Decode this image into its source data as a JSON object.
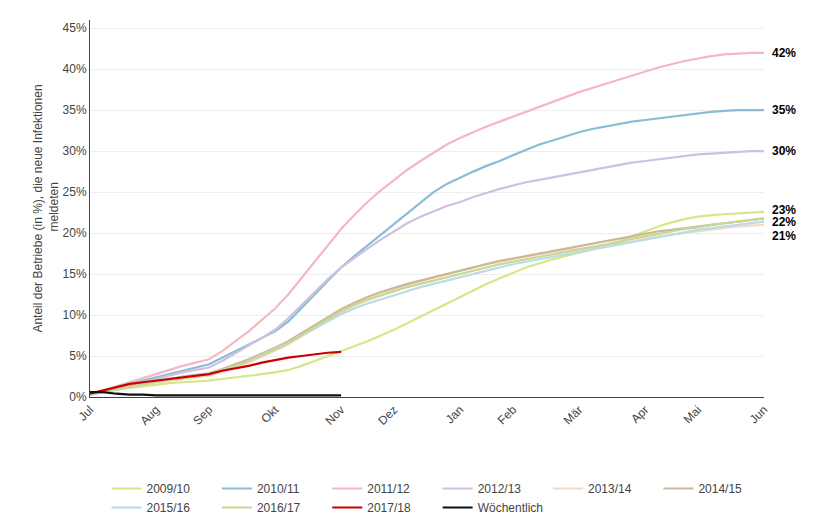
{
  "chart_data": {
    "type": "line",
    "ylabel": "Anteil der Betriebe (in %), die neue Infektionen\n meldeten",
    "categories": [
      "Jul",
      null,
      null,
      null,
      null,
      "Aug",
      null,
      null,
      null,
      "Sep",
      null,
      null,
      null,
      null,
      "Okt",
      null,
      null,
      null,
      null,
      "Nov",
      null,
      null,
      null,
      "Dez",
      null,
      null,
      null,
      null,
      "Jan",
      null,
      null,
      null,
      "Feb",
      null,
      null,
      null,
      null,
      "Mär",
      null,
      null,
      null,
      null,
      "Apr",
      null,
      null,
      null,
      "Mai",
      null,
      null,
      null,
      null,
      "Jun"
    ],
    "ylim": [
      0.0,
      0.46
    ],
    "yticks": [
      {
        "value": 0.0,
        "label": "0%"
      },
      {
        "value": 0.05,
        "label": "5%"
      },
      {
        "value": 0.1,
        "label": "10%"
      },
      {
        "value": 0.15,
        "label": "15%"
      },
      {
        "value": 0.2,
        "label": "20%"
      },
      {
        "value": 0.25,
        "label": "25%"
      },
      {
        "value": 0.3,
        "label": "30%"
      },
      {
        "value": 0.35,
        "label": "35%"
      },
      {
        "value": 0.4,
        "label": "40%"
      },
      {
        "value": 0.45,
        "label": "45%"
      }
    ],
    "grid": true,
    "legend": "bottom",
    "annotations": [
      {
        "text": "42%",
        "y": 0.42
      },
      {
        "text": "35%",
        "y": 0.35
      },
      {
        "text": "30%",
        "y": 0.3
      },
      {
        "text": "23%",
        "y": 0.228
      },
      {
        "text": "22%",
        "y": 0.213
      },
      {
        "text": "21%",
        "y": 0.196
      }
    ],
    "series": [
      {
        "name": "2009/10",
        "color": "#d4e88a",
        "values": [
          0.003,
          0.006,
          0.009,
          0.011,
          0.013,
          0.015,
          0.017,
          0.018,
          0.019,
          0.02,
          0.022,
          0.024,
          0.026,
          0.028,
          0.03,
          0.033,
          0.038,
          0.044,
          0.05,
          0.056,
          0.062,
          0.068,
          0.075,
          0.082,
          0.09,
          0.098,
          0.106,
          0.114,
          0.122,
          0.13,
          0.138,
          0.145,
          0.152,
          0.158,
          0.163,
          0.168,
          0.172,
          0.176,
          0.18,
          0.185,
          0.19,
          0.196,
          0.202,
          0.208,
          0.213,
          0.217,
          0.22,
          0.222,
          0.223,
          0.224,
          0.225,
          0.226
        ]
      },
      {
        "name": "2010/11",
        "color": "#8bbcd6",
        "values": [
          0.004,
          0.008,
          0.012,
          0.016,
          0.02,
          0.024,
          0.028,
          0.032,
          0.036,
          0.04,
          0.048,
          0.056,
          0.064,
          0.072,
          0.08,
          0.092,
          0.108,
          0.125,
          0.142,
          0.158,
          0.172,
          0.185,
          0.198,
          0.212,
          0.225,
          0.238,
          0.25,
          0.26,
          0.268,
          0.275,
          0.282,
          0.288,
          0.295,
          0.302,
          0.308,
          0.313,
          0.318,
          0.323,
          0.327,
          0.33,
          0.333,
          0.336,
          0.338,
          0.34,
          0.342,
          0.344,
          0.346,
          0.348,
          0.349,
          0.35,
          0.35,
          0.35
        ]
      },
      {
        "name": "2011/12",
        "color": "#f5b8c0",
        "values": [
          0.004,
          0.008,
          0.013,
          0.018,
          0.023,
          0.028,
          0.033,
          0.038,
          0.042,
          0.046,
          0.056,
          0.068,
          0.08,
          0.094,
          0.108,
          0.125,
          0.145,
          0.165,
          0.185,
          0.205,
          0.222,
          0.238,
          0.252,
          0.265,
          0.277,
          0.288,
          0.298,
          0.308,
          0.316,
          0.323,
          0.33,
          0.336,
          0.342,
          0.348,
          0.354,
          0.36,
          0.366,
          0.372,
          0.377,
          0.382,
          0.387,
          0.392,
          0.397,
          0.402,
          0.406,
          0.41,
          0.413,
          0.416,
          0.418,
          0.419,
          0.42,
          0.42
        ]
      },
      {
        "name": "2012/13",
        "color": "#cfc0e0",
        "values": [
          0.003,
          0.006,
          0.01,
          0.014,
          0.018,
          0.022,
          0.026,
          0.03,
          0.033,
          0.036,
          0.044,
          0.053,
          0.062,
          0.072,
          0.082,
          0.096,
          0.112,
          0.128,
          0.144,
          0.158,
          0.17,
          0.181,
          0.192,
          0.202,
          0.212,
          0.22,
          0.227,
          0.233,
          0.238,
          0.244,
          0.249,
          0.254,
          0.258,
          0.262,
          0.265,
          0.268,
          0.271,
          0.274,
          0.277,
          0.28,
          0.283,
          0.286,
          0.288,
          0.29,
          0.292,
          0.294,
          0.296,
          0.297,
          0.298,
          0.299,
          0.3,
          0.3
        ]
      },
      {
        "name": "2013/14",
        "color": "#f8d8c8",
        "values": [
          0.003,
          0.006,
          0.009,
          0.012,
          0.015,
          0.018,
          0.02,
          0.022,
          0.024,
          0.026,
          0.03,
          0.036,
          0.042,
          0.049,
          0.056,
          0.064,
          0.074,
          0.084,
          0.094,
          0.103,
          0.111,
          0.118,
          0.124,
          0.13,
          0.136,
          0.141,
          0.146,
          0.15,
          0.154,
          0.158,
          0.162,
          0.165,
          0.168,
          0.171,
          0.174,
          0.177,
          0.179,
          0.181,
          0.183,
          0.185,
          0.187,
          0.19,
          0.193,
          0.196,
          0.198,
          0.2,
          0.202,
          0.204,
          0.206,
          0.208,
          0.209,
          0.21
        ]
      },
      {
        "name": "2014/15",
        "color": "#cbb898",
        "values": [
          0.003,
          0.006,
          0.01,
          0.013,
          0.016,
          0.019,
          0.022,
          0.025,
          0.027,
          0.029,
          0.034,
          0.04,
          0.046,
          0.053,
          0.06,
          0.068,
          0.078,
          0.088,
          0.098,
          0.107,
          0.115,
          0.122,
          0.128,
          0.133,
          0.138,
          0.142,
          0.146,
          0.15,
          0.154,
          0.158,
          0.162,
          0.166,
          0.169,
          0.172,
          0.175,
          0.178,
          0.181,
          0.184,
          0.187,
          0.19,
          0.193,
          0.196,
          0.199,
          0.202,
          0.204,
          0.206,
          0.208,
          0.21,
          0.212,
          0.214,
          0.216,
          0.218
        ]
      },
      {
        "name": "2015/16",
        "color": "#b8dce8",
        "values": [
          0.003,
          0.006,
          0.009,
          0.012,
          0.015,
          0.018,
          0.021,
          0.024,
          0.026,
          0.028,
          0.033,
          0.038,
          0.044,
          0.051,
          0.058,
          0.066,
          0.075,
          0.084,
          0.093,
          0.101,
          0.108,
          0.114,
          0.119,
          0.124,
          0.129,
          0.134,
          0.138,
          0.142,
          0.146,
          0.15,
          0.154,
          0.158,
          0.162,
          0.165,
          0.168,
          0.171,
          0.174,
          0.177,
          0.18,
          0.183,
          0.186,
          0.189,
          0.192,
          0.195,
          0.198,
          0.201,
          0.204,
          0.206,
          0.208,
          0.21,
          0.212,
          0.214
        ]
      },
      {
        "name": "2016/17",
        "color": "#c8d890",
        "values": [
          0.003,
          0.006,
          0.009,
          0.012,
          0.015,
          0.018,
          0.021,
          0.023,
          0.025,
          0.027,
          0.032,
          0.038,
          0.044,
          0.051,
          0.058,
          0.066,
          0.076,
          0.086,
          0.096,
          0.105,
          0.113,
          0.119,
          0.124,
          0.129,
          0.134,
          0.138,
          0.142,
          0.146,
          0.15,
          0.154,
          0.158,
          0.162,
          0.165,
          0.168,
          0.171,
          0.174,
          0.177,
          0.18,
          0.183,
          0.186,
          0.189,
          0.193,
          0.196,
          0.199,
          0.202,
          0.205,
          0.207,
          0.21,
          0.212,
          0.214,
          0.216,
          0.218
        ]
      },
      {
        "name": "2017/18",
        "color": "#cc0000",
        "values": [
          0.004,
          0.008,
          0.012,
          0.016,
          0.018,
          0.02,
          0.022,
          0.024,
          0.026,
          0.028,
          0.032,
          0.035,
          0.038,
          0.042,
          0.045,
          0.048,
          0.05,
          0.052,
          0.054,
          0.055,
          null,
          null,
          null,
          null,
          null,
          null,
          null,
          null,
          null,
          null,
          null,
          null,
          null,
          null,
          null,
          null,
          null,
          null,
          null,
          null,
          null,
          null,
          null,
          null,
          null,
          null,
          null,
          null,
          null,
          null,
          null,
          null
        ]
      },
      {
        "name": "Wöchentlich",
        "color": "#111111",
        "values": [
          0.006,
          0.006,
          0.004,
          0.003,
          0.003,
          0.002,
          0.002,
          0.002,
          0.002,
          0.002,
          0.002,
          0.002,
          0.002,
          0.002,
          0.002,
          0.002,
          0.002,
          0.002,
          0.002,
          0.002,
          null,
          null,
          null,
          null,
          null,
          null,
          null,
          null,
          null,
          null,
          null,
          null,
          null,
          null,
          null,
          null,
          null,
          null,
          null,
          null,
          null,
          null,
          null,
          null,
          null,
          null,
          null,
          null,
          null,
          null,
          null,
          null
        ]
      }
    ]
  }
}
